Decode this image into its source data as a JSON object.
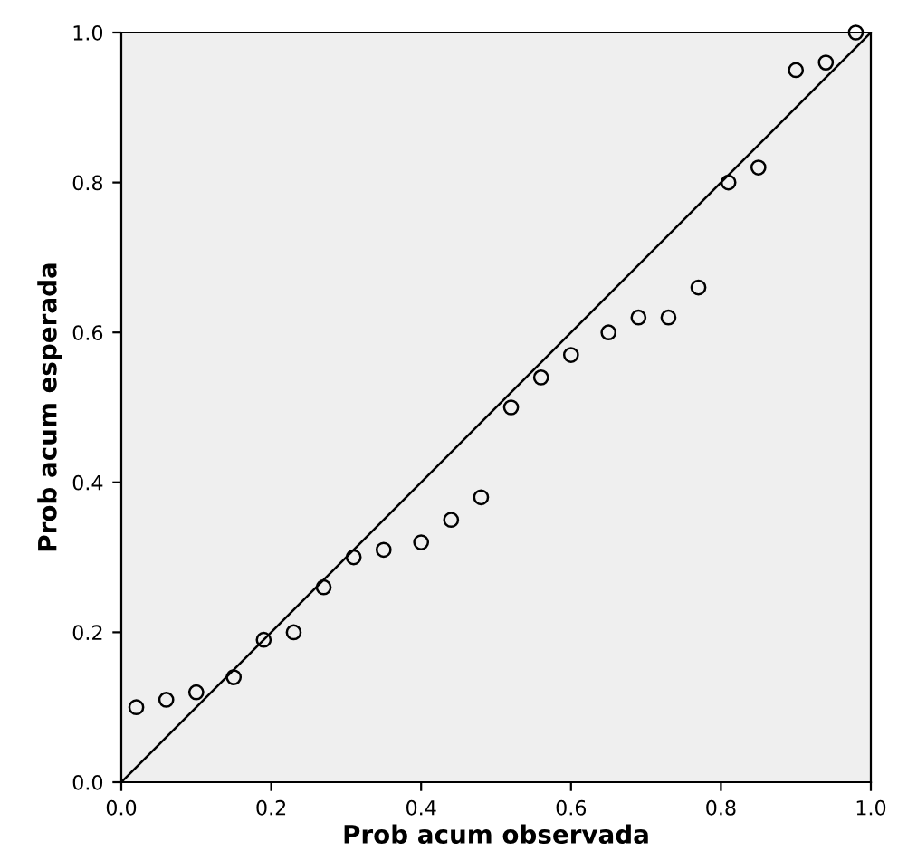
{
  "chart_data": {
    "type": "scatter",
    "xlabel": "Prob acum observada",
    "ylabel": "Prob acum esperada",
    "series": [
      {
        "color": "#000000",
        "marker": "circle",
        "x": [
          0.02,
          0.06,
          0.1,
          0.15,
          0.19,
          0.23,
          0.27,
          0.31,
          0.35,
          0.4,
          0.44,
          0.48,
          0.52,
          0.56,
          0.6,
          0.65,
          0.69,
          0.73,
          0.77,
          0.81,
          0.85,
          0.9,
          0.94,
          0.98
        ],
        "values": [
          0.1,
          0.11,
          0.12,
          0.14,
          0.19,
          0.2,
          0.26,
          0.3,
          0.31,
          0.32,
          0.35,
          0.38,
          0.5,
          0.54,
          0.57,
          0.6,
          0.62,
          0.62,
          0.66,
          0.8,
          0.82,
          0.95,
          0.96,
          1.0
        ]
      },
      {
        "type": "line",
        "color": "#000000",
        "x": [
          0,
          1
        ],
        "values": [
          0,
          1
        ]
      }
    ],
    "xlim": [
      0,
      1
    ],
    "ylim": [
      0,
      1
    ],
    "xticks": [
      {
        "value": 0,
        "label": "0.0"
      },
      0.2,
      0.4,
      0.6,
      0.8,
      {
        "value": 1,
        "label": "1.0"
      }
    ],
    "yticks": [
      {
        "value": 0,
        "label": "0.0"
      },
      0.2,
      0.4,
      0.6,
      0.8,
      {
        "value": 1,
        "label": "1.0"
      }
    ],
    "grid": false
  }
}
